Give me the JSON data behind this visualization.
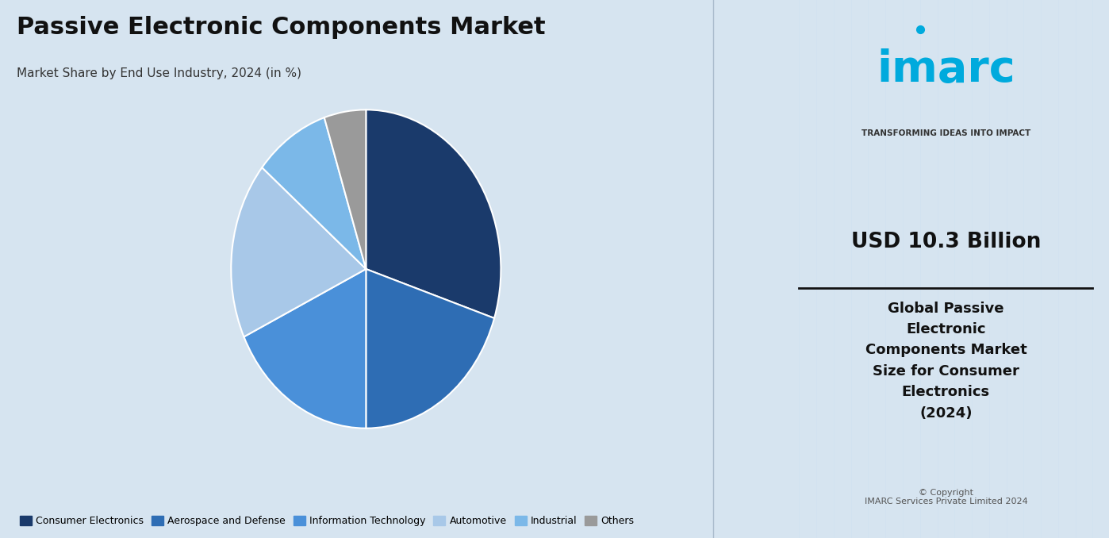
{
  "title": "Passive Electronic Components Market",
  "subtitle": "Market Share by End Use Industry, 2024 (in %)",
  "segments": [
    {
      "label": "Consumer Electronics",
      "value": 30,
      "color": "#1a3a6b"
    },
    {
      "label": "Aerospace and Defense",
      "value": 20,
      "color": "#2e6db4"
    },
    {
      "label": "Information Technology",
      "value": 18,
      "color": "#4a90d9"
    },
    {
      "label": "Automotive",
      "value": 18,
      "color": "#a8c8e8"
    },
    {
      "label": "Industrial",
      "value": 9,
      "color": "#7bb8e8"
    },
    {
      "label": "Others",
      "value": 5,
      "color": "#9a9a9a"
    }
  ],
  "startangle": 90,
  "bg_color": "#d6e4f0",
  "right_panel_bg": "#ffffff",
  "usd_value": "USD 10.3 Billion",
  "right_text": "Global Passive\nElectronic\nComponents Market\nSize for Consumer\nElectronics\n(2024)",
  "copyright_text": "© Copyright\nIMARC Services Private Limited 2024",
  "imarc_tagline": "TRANSFORMING IDEAS INTO IMPACT",
  "imarc_logo": "imarc"
}
